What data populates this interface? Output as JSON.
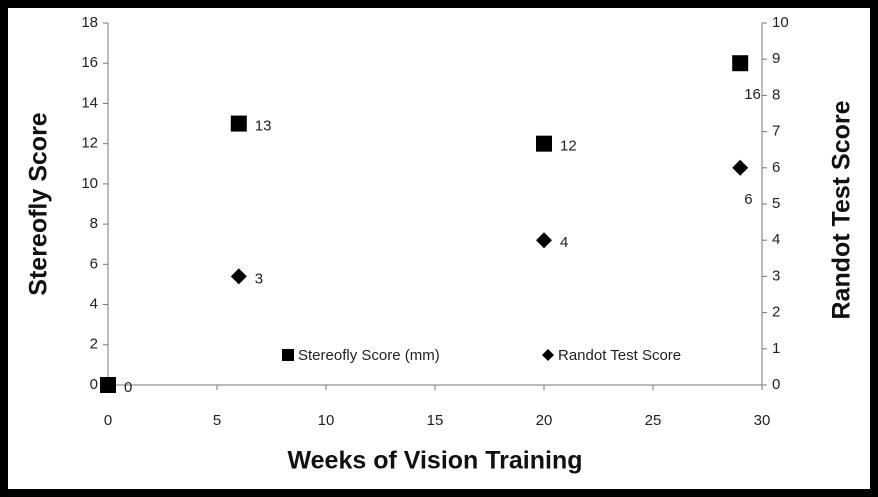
{
  "chart_data": {
    "type": "scatter",
    "xlabel": "Weeks of Vision Training",
    "ylabel": "Stereofly Score",
    "y2label": "Randot Test Score",
    "xlim": [
      0,
      30
    ],
    "xticks": [
      0,
      5,
      10,
      15,
      20,
      25,
      30
    ],
    "ylim": [
      0,
      18
    ],
    "yticks": [
      0,
      2,
      4,
      6,
      8,
      10,
      12,
      14,
      16,
      18
    ],
    "y2lim": [
      0,
      10
    ],
    "y2ticks": [
      0,
      1,
      2,
      3,
      4,
      5,
      6,
      7,
      8,
      9,
      10
    ],
    "grid": false,
    "legend": "bottom",
    "series": [
      {
        "name": "Stereofly Score (mm)",
        "color": "#000000",
        "marker": "square",
        "x": [
          0,
          6,
          20,
          29
        ],
        "values": [
          0,
          13,
          12,
          16
        ]
      },
      {
        "name": "Randot Test Score",
        "color": "#000000",
        "marker": "diamond",
        "axis": "y2",
        "x": [
          6,
          20,
          29
        ],
        "values": [
          3,
          4,
          6
        ]
      }
    ]
  }
}
